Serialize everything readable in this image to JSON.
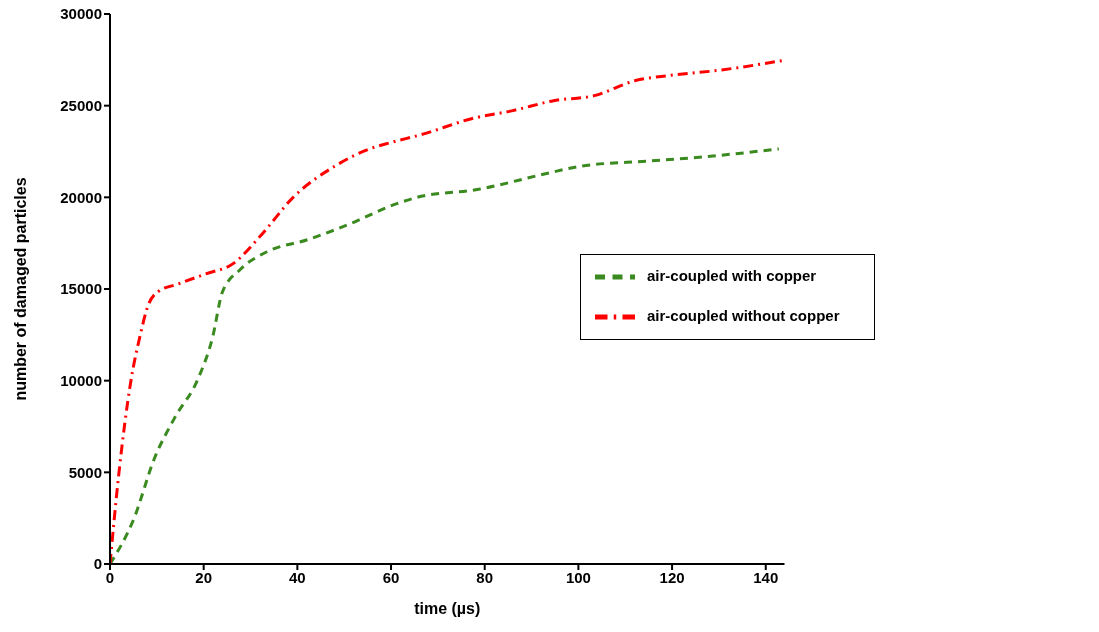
{
  "chart_data": {
    "type": "line",
    "xlabel": "time (µs)",
    "ylabel": "number of damaged particles",
    "xlim": [
      0,
      144
    ],
    "xticks": [
      0,
      20,
      40,
      60,
      80,
      100,
      120,
      140
    ],
    "ylim": [
      0,
      30000
    ],
    "yticks": [
      0,
      5000,
      10000,
      15000,
      20000,
      25000,
      30000
    ],
    "grid": false,
    "legend": "right",
    "marker": "none",
    "series": [
      {
        "name": "air-coupled with copper",
        "color": "#3a8a1f",
        "line_style": "dashed",
        "x": [
          0,
          5.1,
          9.5,
          13.8,
          18.9,
          21.9,
          24,
          27.7,
          33.5,
          42.2,
          52.4,
          59.7,
          65.6,
          78.7,
          93.2,
          100.5,
          115,
          123.8,
          142.8
        ],
        "values": [
          0,
          2470,
          5770,
          7970,
          10160,
          12360,
          14840,
          16040,
          17030,
          17690,
          18680,
          19510,
          20000,
          20440,
          21300,
          21700,
          21980,
          22140,
          22640
        ]
      },
      {
        "name": "air-coupled without copper",
        "color": "#ff0000",
        "line_style": "dashdot",
        "x": [
          0,
          1.9,
          4.4,
          6.6,
          8,
          10.2,
          14.6,
          20.4,
          26.2,
          32,
          39.3,
          48,
          55.4,
          59.7,
          67,
          77.2,
          86,
          94.7,
          103.4,
          112.2,
          119.5,
          129.7,
          143.8
        ],
        "values": [
          0,
          4950,
          9890,
          12640,
          14010,
          14840,
          15280,
          15820,
          16370,
          17860,
          20050,
          21700,
          22640,
          22970,
          23460,
          24290,
          24730,
          25270,
          25550,
          26370,
          26650,
          26920,
          27470
        ]
      }
    ]
  }
}
